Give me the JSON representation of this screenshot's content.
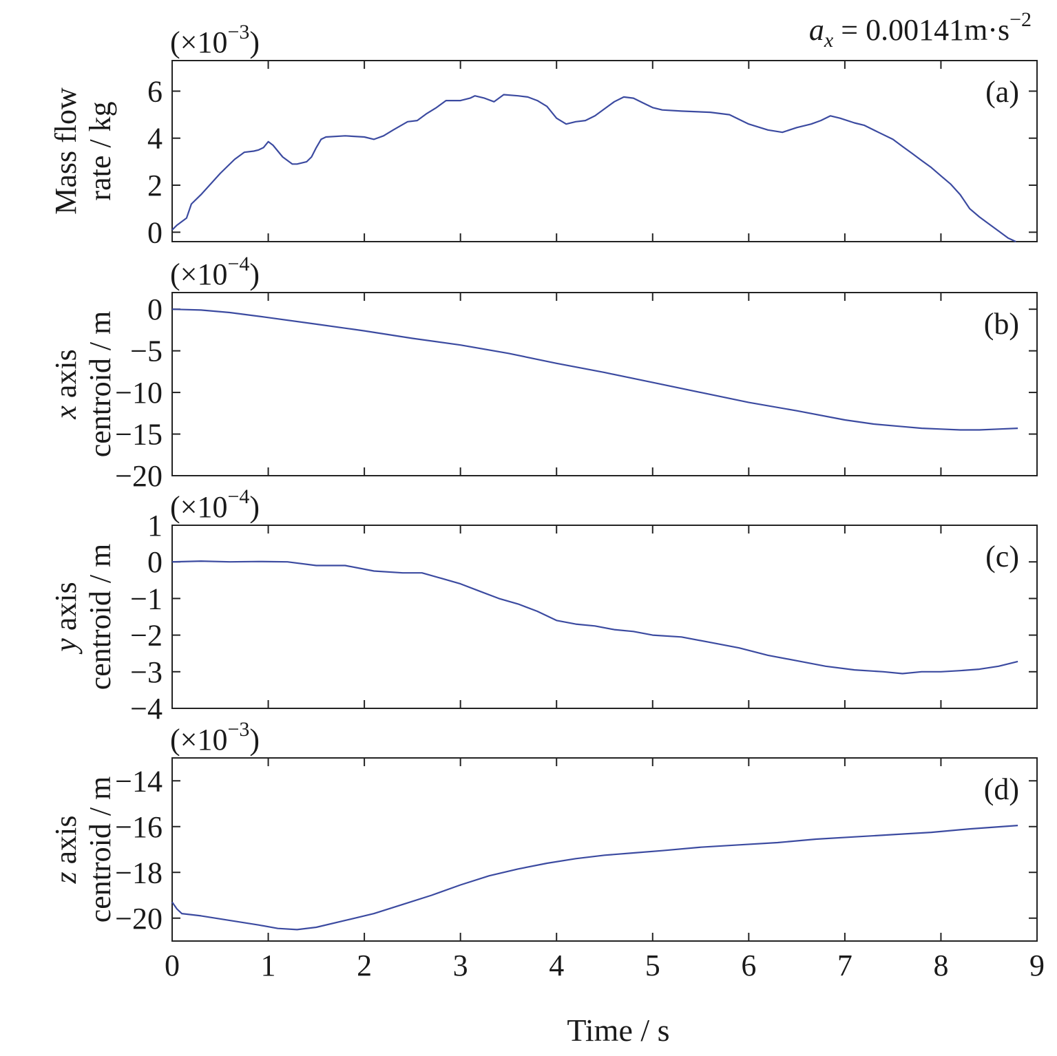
{
  "chart_data": {
    "type": "line",
    "annotation": {
      "var": "a",
      "sub": "x",
      "text": " = 0.00141m·s",
      "exp": "−2"
    },
    "xlabel": "Time / s",
    "xlim": [
      0,
      9
    ],
    "xticks": [
      0,
      1,
      2,
      3,
      4,
      5,
      6,
      7,
      8,
      9
    ],
    "xtick_labels": [
      "0",
      "1",
      "2",
      "3",
      "4",
      "5",
      "6",
      "7",
      "8",
      "9"
    ],
    "panels": [
      {
        "tag": "(a)",
        "multiplier": {
          "base": "(×10",
          "exp": "−3",
          "close": ")"
        },
        "ylabel_lines": [
          [
            "Mass flow"
          ],
          [
            "rate / kg"
          ]
        ],
        "ylim": [
          -0.4,
          7.3
        ],
        "yticks": [
          0,
          2,
          4,
          6
        ],
        "ytick_labels": [
          "0",
          "2",
          "4",
          "6"
        ],
        "x": [
          0,
          0.05,
          0.15,
          0.2,
          0.3,
          0.5,
          0.65,
          0.75,
          0.85,
          0.9,
          0.95,
          1.0,
          1.05,
          1.15,
          1.25,
          1.3,
          1.4,
          1.45,
          1.5,
          1.55,
          1.6,
          1.8,
          2.0,
          2.1,
          2.2,
          2.3,
          2.45,
          2.55,
          2.65,
          2.75,
          2.85,
          3.0,
          3.1,
          3.15,
          3.25,
          3.35,
          3.45,
          3.6,
          3.7,
          3.8,
          3.9,
          4.0,
          4.1,
          4.2,
          4.3,
          4.4,
          4.5,
          4.6,
          4.7,
          4.8,
          4.9,
          5.0,
          5.1,
          5.3,
          5.6,
          5.8,
          6.0,
          6.2,
          6.35,
          6.5,
          6.65,
          6.75,
          6.85,
          6.95,
          7.1,
          7.2,
          7.35,
          7.5,
          7.6,
          7.7,
          7.8,
          7.9,
          8.0,
          8.1,
          8.2,
          8.3,
          8.4,
          8.5,
          8.6,
          8.7,
          8.78
        ],
        "y": [
          0.1,
          0.3,
          0.6,
          1.2,
          1.6,
          2.5,
          3.1,
          3.4,
          3.45,
          3.5,
          3.6,
          3.85,
          3.7,
          3.2,
          2.9,
          2.9,
          3.0,
          3.2,
          3.6,
          3.95,
          4.05,
          4.1,
          4.05,
          3.95,
          4.1,
          4.35,
          4.7,
          4.75,
          5.05,
          5.3,
          5.6,
          5.6,
          5.7,
          5.8,
          5.7,
          5.55,
          5.85,
          5.8,
          5.75,
          5.6,
          5.35,
          4.85,
          4.6,
          4.7,
          4.75,
          4.95,
          5.25,
          5.55,
          5.75,
          5.7,
          5.5,
          5.3,
          5.2,
          5.15,
          5.1,
          5.0,
          4.6,
          4.35,
          4.25,
          4.45,
          4.6,
          4.75,
          4.95,
          4.85,
          4.65,
          4.55,
          4.25,
          3.95,
          3.65,
          3.35,
          3.05,
          2.75,
          2.4,
          2.05,
          1.6,
          1.0,
          0.65,
          0.35,
          0.05,
          -0.25,
          -0.4
        ]
      },
      {
        "tag": "(b)",
        "multiplier": {
          "base": "(×10",
          "exp": "−4",
          "close": ")"
        },
        "ylabel_lines": [
          [
            "x",
            " axis"
          ],
          [
            "centroid / m"
          ]
        ],
        "ylim": [
          -20,
          2
        ],
        "yticks": [
          0,
          -5,
          -10,
          -15,
          -20
        ],
        "ytick_labels": [
          "0",
          "−5",
          "−10",
          "−15",
          "−20"
        ],
        "x": [
          0,
          0.3,
          0.6,
          0.8,
          1.0,
          1.5,
          2.0,
          2.5,
          3.0,
          3.5,
          4.0,
          4.5,
          5.0,
          5.5,
          6.0,
          6.5,
          7.0,
          7.3,
          7.6,
          7.8,
          8.0,
          8.2,
          8.4,
          8.6,
          8.8
        ],
        "y": [
          0,
          -0.1,
          -0.4,
          -0.7,
          -1.0,
          -1.8,
          -2.6,
          -3.5,
          -4.3,
          -5.3,
          -6.5,
          -7.6,
          -8.8,
          -10.0,
          -11.2,
          -12.2,
          -13.3,
          -13.8,
          -14.1,
          -14.3,
          -14.4,
          -14.5,
          -14.5,
          -14.4,
          -14.3
        ]
      },
      {
        "tag": "(c)",
        "multiplier": {
          "base": "(×10",
          "exp": "−4",
          "close": ")"
        },
        "ylabel_lines": [
          [
            "y",
            " axis"
          ],
          [
            "centroid / m"
          ]
        ],
        "ylim": [
          -4,
          1
        ],
        "yticks": [
          1,
          0,
          -1,
          -2,
          -3,
          -4
        ],
        "ytick_labels": [
          "1",
          "0",
          "−1",
          "−2",
          "−3",
          "−4"
        ],
        "x": [
          0,
          0.3,
          0.6,
          0.9,
          1.2,
          1.5,
          1.8,
          2.1,
          2.4,
          2.6,
          2.8,
          3.0,
          3.2,
          3.4,
          3.6,
          3.8,
          4.0,
          4.2,
          4.4,
          4.6,
          4.8,
          5.0,
          5.3,
          5.6,
          5.9,
          6.2,
          6.5,
          6.8,
          7.1,
          7.4,
          7.6,
          7.8,
          8.0,
          8.2,
          8.4,
          8.6,
          8.8
        ],
        "y": [
          0.0,
          0.02,
          0.0,
          0.01,
          0.0,
          -0.1,
          -0.1,
          -0.25,
          -0.3,
          -0.3,
          -0.45,
          -0.6,
          -0.8,
          -1.0,
          -1.15,
          -1.35,
          -1.6,
          -1.7,
          -1.75,
          -1.85,
          -1.9,
          -2.0,
          -2.05,
          -2.2,
          -2.35,
          -2.55,
          -2.7,
          -2.85,
          -2.95,
          -3.0,
          -3.05,
          -3.0,
          -3.0,
          -2.97,
          -2.93,
          -2.85,
          -2.72
        ]
      },
      {
        "tag": "(d)",
        "multiplier": {
          "base": "(×10",
          "exp": "−3",
          "close": ")"
        },
        "ylabel_lines": [
          [
            "z",
            " axis"
          ],
          [
            "centroid / m"
          ]
        ],
        "ylim": [
          -21,
          -13
        ],
        "yticks": [
          -14,
          -16,
          -18,
          -20
        ],
        "ytick_labels": [
          "−14",
          "−16",
          "−18",
          "−20"
        ],
        "x": [
          0,
          0.05,
          0.1,
          0.3,
          0.6,
          0.9,
          1.1,
          1.3,
          1.5,
          1.8,
          2.1,
          2.4,
          2.7,
          3.0,
          3.3,
          3.6,
          3.9,
          4.2,
          4.5,
          4.8,
          5.1,
          5.5,
          5.9,
          6.3,
          6.7,
          7.1,
          7.5,
          7.9,
          8.3,
          8.8
        ],
        "y": [
          -19.3,
          -19.6,
          -19.8,
          -19.9,
          -20.1,
          -20.3,
          -20.45,
          -20.5,
          -20.4,
          -20.1,
          -19.8,
          -19.4,
          -19.0,
          -18.55,
          -18.15,
          -17.85,
          -17.6,
          -17.4,
          -17.25,
          -17.15,
          -17.05,
          -16.9,
          -16.8,
          -16.7,
          -16.55,
          -16.45,
          -16.35,
          -16.25,
          -16.1,
          -15.95
        ]
      }
    ]
  }
}
